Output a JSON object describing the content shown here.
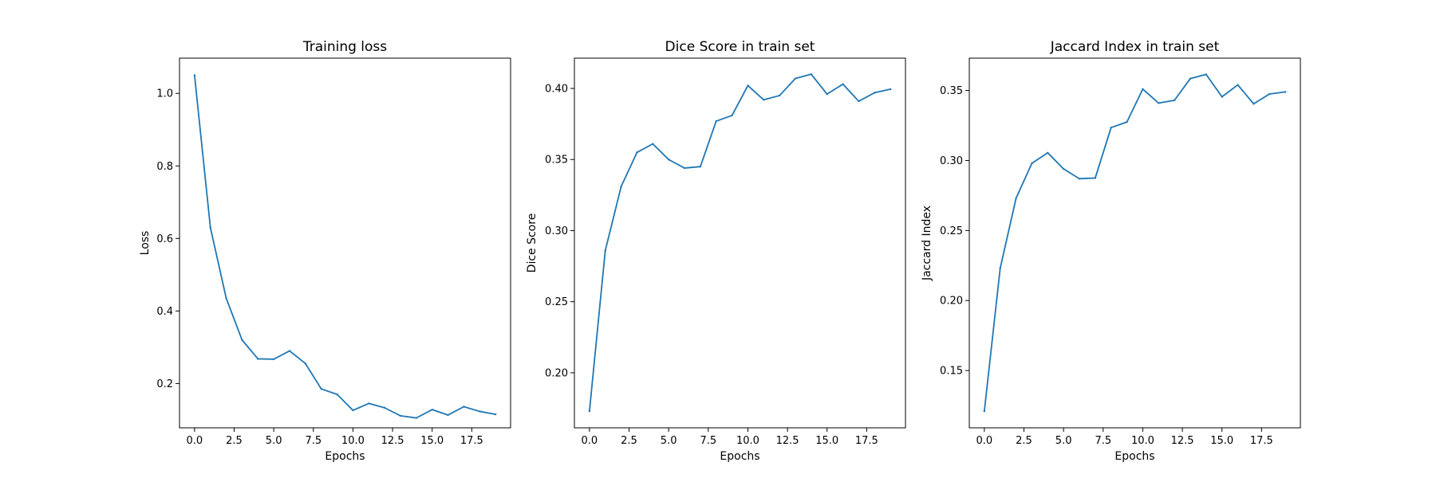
{
  "chart_data": [
    {
      "type": "line",
      "title": "Training loss",
      "xlabel": "Epochs",
      "ylabel": "Loss",
      "x": [
        0,
        1,
        2,
        3,
        4,
        5,
        6,
        7,
        8,
        9,
        10,
        11,
        12,
        13,
        14,
        15,
        16,
        17,
        18,
        19
      ],
      "series": [
        {
          "values": [
            1.05,
            0.63,
            0.435,
            0.32,
            0.268,
            0.267,
            0.29,
            0.255,
            0.185,
            0.17,
            0.126,
            0.145,
            0.133,
            0.111,
            0.105,
            0.128,
            0.113,
            0.136,
            0.123,
            0.115
          ],
          "color": "#1f77b4"
        }
      ],
      "xlim": [
        -0.95,
        19.95
      ],
      "ylim": [
        0.0778,
        1.0972
      ],
      "xticks": [
        0.0,
        2.5,
        5.0,
        7.5,
        10.0,
        12.5,
        15.0,
        17.5
      ],
      "xtick_labels": [
        "0.0",
        "2.5",
        "5.0",
        "7.5",
        "10.0",
        "12.5",
        "15.0",
        "17.5"
      ],
      "yticks": [
        0.2,
        0.4,
        0.6,
        0.8,
        1.0
      ],
      "ytick_labels": [
        "0.2",
        "0.4",
        "0.6",
        "0.8",
        "1.0"
      ],
      "grid": false
    },
    {
      "type": "line",
      "title": "Dice Score in train set",
      "xlabel": "Epochs",
      "ylabel": "Dice Score",
      "x": [
        0,
        1,
        2,
        3,
        4,
        5,
        6,
        7,
        8,
        9,
        10,
        11,
        12,
        13,
        14,
        15,
        16,
        17,
        18,
        19
      ],
      "series": [
        {
          "values": [
            0.173,
            0.286,
            0.331,
            0.355,
            0.361,
            0.35,
            0.344,
            0.345,
            0.377,
            0.381,
            0.402,
            0.392,
            0.395,
            0.407,
            0.41,
            0.396,
            0.403,
            0.391,
            0.397,
            0.3995
          ],
          "color": "#1f77b4"
        }
      ],
      "xlim": [
        -0.95,
        19.95
      ],
      "ylim": [
        0.1613,
        0.4213
      ],
      "xticks": [
        0.0,
        2.5,
        5.0,
        7.5,
        10.0,
        12.5,
        15.0,
        17.5
      ],
      "xtick_labels": [
        "0.0",
        "2.5",
        "5.0",
        "7.5",
        "10.0",
        "12.5",
        "15.0",
        "17.5"
      ],
      "yticks": [
        0.2,
        0.25,
        0.3,
        0.35,
        0.4
      ],
      "ytick_labels": [
        "0.20",
        "0.25",
        "0.30",
        "0.35",
        "0.40"
      ],
      "grid": false
    },
    {
      "type": "line",
      "title": "Jaccard Index in train set",
      "xlabel": "Epochs",
      "ylabel": "Jaccard Index",
      "x": [
        0,
        1,
        2,
        3,
        4,
        5,
        6,
        7,
        8,
        9,
        10,
        11,
        12,
        13,
        14,
        15,
        16,
        17,
        18,
        19
      ],
      "series": [
        {
          "values": [
            0.121,
            0.223,
            0.273,
            0.298,
            0.3055,
            0.294,
            0.287,
            0.2875,
            0.3235,
            0.3275,
            0.351,
            0.341,
            0.343,
            0.3585,
            0.3615,
            0.3455,
            0.354,
            0.3405,
            0.3475,
            0.349
          ],
          "color": "#1f77b4"
        }
      ],
      "xlim": [
        -0.95,
        19.95
      ],
      "ylim": [
        0.1091,
        0.3731
      ],
      "xticks": [
        0.0,
        2.5,
        5.0,
        7.5,
        10.0,
        12.5,
        15.0,
        17.5
      ],
      "xtick_labels": [
        "0.0",
        "2.5",
        "5.0",
        "7.5",
        "10.0",
        "12.5",
        "15.0",
        "17.5"
      ],
      "yticks": [
        0.15,
        0.2,
        0.25,
        0.3,
        0.35
      ],
      "ytick_labels": [
        "0.15",
        "0.20",
        "0.25",
        "0.30",
        "0.35"
      ],
      "grid": false
    }
  ]
}
